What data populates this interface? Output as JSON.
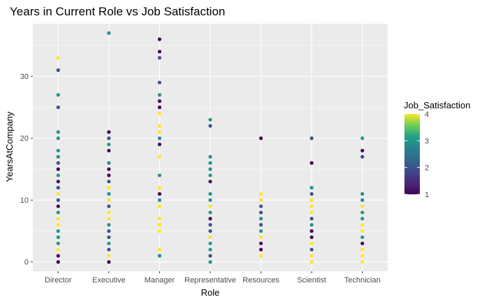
{
  "chart_data": {
    "type": "scatter",
    "title": "Years in Current Role vs Job Satisfaction",
    "xlabel": "Role",
    "ylabel": "YearsAtCompany",
    "categories": [
      "Director",
      "Executive",
      "Manager",
      "Representative",
      "Resources",
      "Scientist",
      "Technician"
    ],
    "ylim": [
      -1.5,
      38.5
    ],
    "yticks": [
      0,
      10,
      20,
      30
    ],
    "grid": true,
    "legend": {
      "title": "Job_Satisfaction",
      "placement": "right",
      "ticks": [
        1,
        2,
        3,
        4
      ],
      "range": [
        1,
        4
      ],
      "colors": [
        "#440154",
        "#31688e",
        "#35b779",
        "#fde725"
      ]
    },
    "points": [
      {
        "x": "Director",
        "y": 0,
        "s": 1
      },
      {
        "x": "Director",
        "y": 1,
        "s": 1
      },
      {
        "x": "Director",
        "y": 2,
        "s": 4
      },
      {
        "x": "Director",
        "y": 3,
        "s": 3
      },
      {
        "x": "Director",
        "y": 4,
        "s": 3
      },
      {
        "x": "Director",
        "y": 5,
        "s": 3
      },
      {
        "x": "Director",
        "y": 6,
        "s": 4
      },
      {
        "x": "Director",
        "y": 7,
        "s": 4
      },
      {
        "x": "Director",
        "y": 8,
        "s": 3
      },
      {
        "x": "Director",
        "y": 9,
        "s": 1
      },
      {
        "x": "Director",
        "y": 10,
        "s": 2
      },
      {
        "x": "Director",
        "y": 11,
        "s": 4
      },
      {
        "x": "Director",
        "y": 12,
        "s": 2
      },
      {
        "x": "Director",
        "y": 13,
        "s": 1
      },
      {
        "x": "Director",
        "y": 14,
        "s": 3
      },
      {
        "x": "Director",
        "y": 15,
        "s": 1
      },
      {
        "x": "Director",
        "y": 16,
        "s": 2
      },
      {
        "x": "Director",
        "y": 17,
        "s": 3
      },
      {
        "x": "Director",
        "y": 18,
        "s": 3
      },
      {
        "x": "Director",
        "y": 20,
        "s": 3
      },
      {
        "x": "Director",
        "y": 21,
        "s": 3
      },
      {
        "x": "Director",
        "y": 25,
        "s": 2
      },
      {
        "x": "Director",
        "y": 27,
        "s": 3
      },
      {
        "x": "Director",
        "y": 31,
        "s": 2
      },
      {
        "x": "Director",
        "y": 33,
        "s": 4
      },
      {
        "x": "Executive",
        "y": 0,
        "s": 1
      },
      {
        "x": "Executive",
        "y": 1,
        "s": 4
      },
      {
        "x": "Executive",
        "y": 2,
        "s": 2
      },
      {
        "x": "Executive",
        "y": 3,
        "s": 3
      },
      {
        "x": "Executive",
        "y": 4,
        "s": 2
      },
      {
        "x": "Executive",
        "y": 5,
        "s": 2
      },
      {
        "x": "Executive",
        "y": 6,
        "s": 3
      },
      {
        "x": "Executive",
        "y": 7,
        "s": 4
      },
      {
        "x": "Executive",
        "y": 8,
        "s": 4
      },
      {
        "x": "Executive",
        "y": 9,
        "s": 2
      },
      {
        "x": "Executive",
        "y": 10,
        "s": 4
      },
      {
        "x": "Executive",
        "y": 11,
        "s": 3
      },
      {
        "x": "Executive",
        "y": 12,
        "s": 4
      },
      {
        "x": "Executive",
        "y": 13,
        "s": 2
      },
      {
        "x": "Executive",
        "y": 14,
        "s": 1
      },
      {
        "x": "Executive",
        "y": 15,
        "s": 1
      },
      {
        "x": "Executive",
        "y": 16,
        "s": 3
      },
      {
        "x": "Executive",
        "y": 18,
        "s": 1
      },
      {
        "x": "Executive",
        "y": 19,
        "s": 3
      },
      {
        "x": "Executive",
        "y": 20,
        "s": 2
      },
      {
        "x": "Executive",
        "y": 21,
        "s": 1
      },
      {
        "x": "Executive",
        "y": 37,
        "s": 3
      },
      {
        "x": "Manager",
        "y": 1,
        "s": 3
      },
      {
        "x": "Manager",
        "y": 2,
        "s": 4
      },
      {
        "x": "Manager",
        "y": 5,
        "s": 4
      },
      {
        "x": "Manager",
        "y": 6,
        "s": 4
      },
      {
        "x": "Manager",
        "y": 7,
        "s": 4
      },
      {
        "x": "Manager",
        "y": 9,
        "s": 4
      },
      {
        "x": "Manager",
        "y": 10,
        "s": 3
      },
      {
        "x": "Manager",
        "y": 11,
        "s": 1
      },
      {
        "x": "Manager",
        "y": 12,
        "s": 4
      },
      {
        "x": "Manager",
        "y": 14,
        "s": 3
      },
      {
        "x": "Manager",
        "y": 17,
        "s": 4
      },
      {
        "x": "Manager",
        "y": 19,
        "s": 1
      },
      {
        "x": "Manager",
        "y": 20,
        "s": 3
      },
      {
        "x": "Manager",
        "y": 21,
        "s": 4
      },
      {
        "x": "Manager",
        "y": 22,
        "s": 4
      },
      {
        "x": "Manager",
        "y": 24,
        "s": 4
      },
      {
        "x": "Manager",
        "y": 25,
        "s": 1
      },
      {
        "x": "Manager",
        "y": 26,
        "s": 1
      },
      {
        "x": "Manager",
        "y": 27,
        "s": 3
      },
      {
        "x": "Manager",
        "y": 29,
        "s": 2
      },
      {
        "x": "Manager",
        "y": 33,
        "s": 2
      },
      {
        "x": "Manager",
        "y": 34,
        "s": 1
      },
      {
        "x": "Manager",
        "y": 36,
        "s": 1
      },
      {
        "x": "Representative",
        "y": 0,
        "s": 3
      },
      {
        "x": "Representative",
        "y": 1,
        "s": 2
      },
      {
        "x": "Representative",
        "y": 2,
        "s": 3
      },
      {
        "x": "Representative",
        "y": 3,
        "s": 3
      },
      {
        "x": "Representative",
        "y": 4,
        "s": 4
      },
      {
        "x": "Representative",
        "y": 5,
        "s": 2
      },
      {
        "x": "Representative",
        "y": 6,
        "s": 2
      },
      {
        "x": "Representative",
        "y": 7,
        "s": 1
      },
      {
        "x": "Representative",
        "y": 8,
        "s": 3
      },
      {
        "x": "Representative",
        "y": 9,
        "s": 4
      },
      {
        "x": "Representative",
        "y": 10,
        "s": 3
      },
      {
        "x": "Representative",
        "y": 11,
        "s": 3
      },
      {
        "x": "Representative",
        "y": 13,
        "s": 1
      },
      {
        "x": "Representative",
        "y": 14,
        "s": 3
      },
      {
        "x": "Representative",
        "y": 15,
        "s": 3
      },
      {
        "x": "Representative",
        "y": 16,
        "s": 3
      },
      {
        "x": "Representative",
        "y": 17,
        "s": 3
      },
      {
        "x": "Representative",
        "y": 22,
        "s": 2
      },
      {
        "x": "Representative",
        "y": 23,
        "s": 3
      },
      {
        "x": "Resources",
        "y": 1,
        "s": 4
      },
      {
        "x": "Resources",
        "y": 2,
        "s": 1
      },
      {
        "x": "Resources",
        "y": 3,
        "s": 1
      },
      {
        "x": "Resources",
        "y": 4,
        "s": 4
      },
      {
        "x": "Resources",
        "y": 5,
        "s": 3
      },
      {
        "x": "Resources",
        "y": 6,
        "s": 2
      },
      {
        "x": "Resources",
        "y": 7,
        "s": 3
      },
      {
        "x": "Resources",
        "y": 8,
        "s": 2
      },
      {
        "x": "Resources",
        "y": 9,
        "s": 2
      },
      {
        "x": "Resources",
        "y": 10,
        "s": 4
      },
      {
        "x": "Resources",
        "y": 11,
        "s": 4
      },
      {
        "x": "Resources",
        "y": 20,
        "s": 1
      },
      {
        "x": "Scientist",
        "y": 0,
        "s": 4
      },
      {
        "x": "Scientist",
        "y": 1,
        "s": 4
      },
      {
        "x": "Scientist",
        "y": 2,
        "s": 2
      },
      {
        "x": "Scientist",
        "y": 3,
        "s": 4
      },
      {
        "x": "Scientist",
        "y": 4,
        "s": 1
      },
      {
        "x": "Scientist",
        "y": 5,
        "s": 1
      },
      {
        "x": "Scientist",
        "y": 6,
        "s": 3
      },
      {
        "x": "Scientist",
        "y": 7,
        "s": 2
      },
      {
        "x": "Scientist",
        "y": 8,
        "s": 4
      },
      {
        "x": "Scientist",
        "y": 9,
        "s": 4
      },
      {
        "x": "Scientist",
        "y": 10,
        "s": 4
      },
      {
        "x": "Scientist",
        "y": 11,
        "s": 2
      },
      {
        "x": "Scientist",
        "y": 12,
        "s": 3
      },
      {
        "x": "Scientist",
        "y": 16,
        "s": 1
      },
      {
        "x": "Scientist",
        "y": 20,
        "s": 2
      },
      {
        "x": "Technician",
        "y": 0,
        "s": 4
      },
      {
        "x": "Technician",
        "y": 1,
        "s": 4
      },
      {
        "x": "Technician",
        "y": 2,
        "s": 4
      },
      {
        "x": "Technician",
        "y": 3,
        "s": 1
      },
      {
        "x": "Technician",
        "y": 4,
        "s": 3
      },
      {
        "x": "Technician",
        "y": 5,
        "s": 4
      },
      {
        "x": "Technician",
        "y": 6,
        "s": 4
      },
      {
        "x": "Technician",
        "y": 7,
        "s": 3
      },
      {
        "x": "Technician",
        "y": 8,
        "s": 3
      },
      {
        "x": "Technician",
        "y": 9,
        "s": 4
      },
      {
        "x": "Technician",
        "y": 10,
        "s": 3
      },
      {
        "x": "Technician",
        "y": 11,
        "s": 3
      },
      {
        "x": "Technician",
        "y": 17,
        "s": 2
      },
      {
        "x": "Technician",
        "y": 18,
        "s": 1
      },
      {
        "x": "Technician",
        "y": 20,
        "s": 3
      }
    ]
  },
  "colors": {
    "panel_background": "#ebebeb",
    "grid": "#ffffff"
  }
}
